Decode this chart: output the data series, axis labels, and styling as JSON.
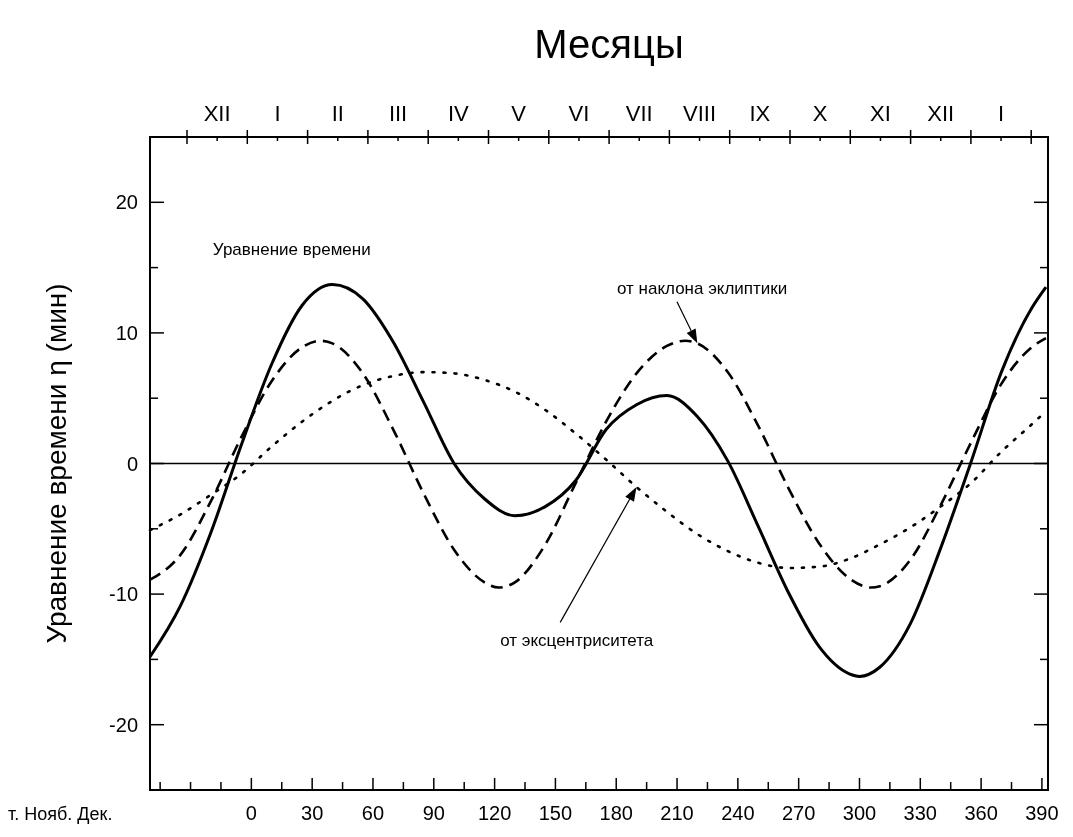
{
  "chart_data": {
    "type": "line",
    "x2label": "Месяцы",
    "ylabel": "Уравнение времени η (мин)",
    "annotations": [
      "т. Нояб. Дек.",
      "XII",
      "I",
      "II",
      "III",
      "IV",
      "V",
      "VI",
      "VII",
      "VIII",
      "IX",
      "X",
      "XI",
      "XII",
      "I"
    ],
    "legend": false,
    "xlim": [
      -50,
      393
    ],
    "xticks": [
      {
        "value": -45,
        "label": null
      },
      {
        "value": -30,
        "label": null
      },
      {
        "value": -15,
        "label": null
      },
      0,
      {
        "value": 15,
        "label": null
      },
      30,
      {
        "value": 45,
        "label": null
      },
      60,
      {
        "value": 75,
        "label": null
      },
      90,
      {
        "value": 105,
        "label": null
      },
      120,
      {
        "value": 135,
        "label": null
      },
      150,
      {
        "value": 165,
        "label": null
      },
      180,
      {
        "value": 195,
        "label": null
      },
      210,
      {
        "value": 225,
        "label": null
      },
      240,
      {
        "value": 255,
        "label": null
      },
      270,
      {
        "value": 285,
        "label": null
      },
      300,
      {
        "value": 315,
        "label": null
      },
      330,
      {
        "value": 345,
        "label": null
      },
      360,
      {
        "value": 375,
        "label": null
      },
      390
    ],
    "ylim": [
      -25,
      25
    ],
    "yticks": [
      -20,
      {
        "value": -15,
        "label": null
      },
      -10,
      {
        "value": -5,
        "label": null
      },
      0,
      {
        "value": 5,
        "label": null
      },
      10,
      {
        "value": 15,
        "label": null
      },
      20
    ],
    "ref_lines": [
      {
        "axis": "y",
        "value": 0,
        "color": "#000000"
      }
    ],
    "series": [
      {
        "name": "Уравнение времени",
        "color": "#000000",
        "line_style": "solid",
        "x": [
          -50,
          -35,
          -20,
          -5,
          10,
          25,
          40,
          55,
          70,
          85,
          100,
          115,
          130,
          145,
          160,
          175,
          190,
          205,
          220,
          235,
          250,
          265,
          280,
          295,
          300,
          310,
          325,
          340,
          355,
          370,
          385,
          392
        ],
        "values": [
          -14.8,
          -10.9,
          -5.3,
          1.4,
          7.6,
          12.1,
          13.7,
          12.6,
          9.3,
          4.7,
          0.0,
          -2.7,
          -4.0,
          -3.3,
          -1.3,
          2.6,
          4.5,
          5.2,
          3.6,
          0.2,
          -4.8,
          -9.9,
          -14.0,
          -16.1,
          -16.3,
          -15.6,
          -12.3,
          -6.5,
          0.1,
          7.0,
          11.9,
          13.5
        ]
      },
      {
        "name": "от наклона эклиптики",
        "color": "#000000",
        "line_style": "dashed",
        "x": [
          -50,
          -35,
          -20,
          -5,
          10,
          25,
          34,
          40,
          55,
          70,
          85,
          100,
          115,
          122,
          130,
          145,
          160,
          175,
          190,
          205,
          214,
          220,
          235,
          250,
          265,
          280,
          295,
          306,
          310,
          325,
          340,
          355,
          370,
          385,
          392
        ],
        "values": [
          -8.9,
          -7.0,
          -2.9,
          2.0,
          6.3,
          8.9,
          9.4,
          9.2,
          6.9,
          2.6,
          -2.3,
          -6.6,
          -9.1,
          -9.5,
          -9.1,
          -6.2,
          -1.5,
          3.2,
          6.9,
          9.0,
          9.4,
          9.2,
          7.0,
          2.9,
          -1.9,
          -6.1,
          -8.8,
          -9.5,
          -9.4,
          -7.4,
          -3.2,
          1.6,
          6.1,
          8.9,
          9.6
        ]
      },
      {
        "name": "от эксцентриситета",
        "color": "#000000",
        "line_style": "dotted",
        "x": [
          -50,
          -35,
          -20,
          -5,
          10,
          25,
          40,
          55,
          70,
          85,
          100,
          115,
          130,
          145,
          160,
          175,
          190,
          205,
          220,
          235,
          250,
          265,
          280,
          295,
          310,
          325,
          340,
          355,
          370,
          385,
          392
        ],
        "values": [
          -5.1,
          -3.9,
          -2.4,
          -0.8,
          1.3,
          3.2,
          4.8,
          6.0,
          6.7,
          7.0,
          6.9,
          6.4,
          5.5,
          4.1,
          2.3,
          0.3,
          -1.8,
          -3.7,
          -5.4,
          -6.7,
          -7.6,
          -8.0,
          -7.9,
          -7.3,
          -6.2,
          -4.9,
          -3.3,
          -1.5,
          0.9,
          3.0,
          4.0
        ]
      }
    ]
  }
}
